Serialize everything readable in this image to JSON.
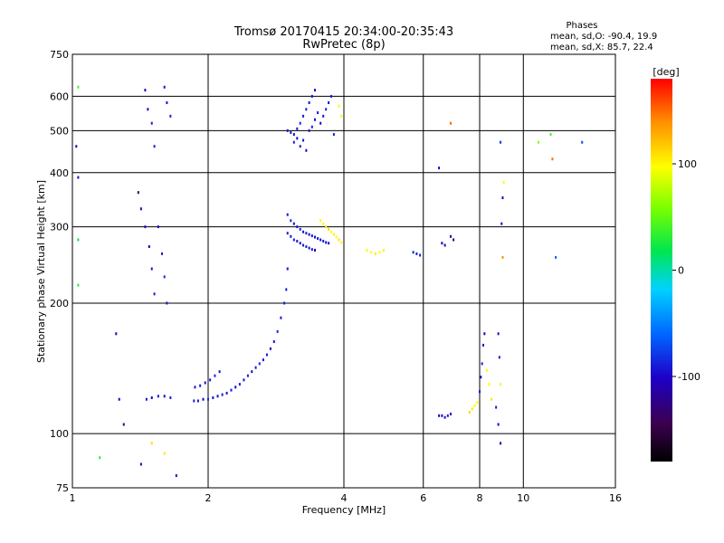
{
  "header": {
    "title_line1": "Tromsø 20170415 20:34:00-20:35:43",
    "title_line2": "RwPretec (8p)"
  },
  "phases_box": {
    "heading": "Phases",
    "line_o": "mean, sd,O: -90.4, 19.9",
    "line_x": "mean, sd,X: 85.7, 22.4"
  },
  "colorbar": {
    "unit_label": "[deg]",
    "range": [
      -180,
      180
    ],
    "ticks": [
      {
        "value": 100,
        "label": "100"
      },
      {
        "value": 0,
        "label": "0"
      },
      {
        "value": -100,
        "label": "-100"
      }
    ]
  },
  "chart_data": {
    "type": "scatter",
    "title": "Tromsø 20170415 20:34:00-20:35:43",
    "subtitle": "RwPretec (8p)",
    "xlabel": "Frequency [MHz]",
    "ylabel": "Stationary phase Virtual Height [km]",
    "x_scale": "log",
    "y_scale": "log",
    "xlim": [
      1,
      16
    ],
    "ylim": [
      75,
      750
    ],
    "x_ticks": [
      {
        "value": 1,
        "label": "1"
      },
      {
        "value": 2,
        "label": "2"
      },
      {
        "value": 4,
        "label": "4"
      },
      {
        "value": 6,
        "label": "6"
      },
      {
        "value": 8,
        "label": "8"
      },
      {
        "value": 10,
        "label": "10"
      },
      {
        "value": 16,
        "label": "16"
      }
    ],
    "y_ticks": [
      {
        "value": 75,
        "label": "75"
      },
      {
        "value": 100,
        "label": "100"
      },
      {
        "value": 200,
        "label": "200"
      },
      {
        "value": 300,
        "label": "300"
      },
      {
        "value": 400,
        "label": "400"
      },
      {
        "value": 500,
        "label": "500"
      },
      {
        "value": 600,
        "label": "600"
      },
      {
        "value": 750,
        "label": "750"
      }
    ],
    "x_gridlines": [
      2,
      4,
      6,
      8,
      10
    ],
    "y_gridlines": [
      100,
      200,
      300,
      400,
      500,
      600
    ],
    "grid": true,
    "color_axis": "phase [deg]",
    "series": [
      {
        "trace": "O-mode lower trace",
        "points": [
          [
            1.46,
            120,
            -95
          ],
          [
            1.5,
            121,
            -100
          ],
          [
            1.55,
            122,
            -92
          ],
          [
            1.6,
            122,
            -98
          ],
          [
            1.65,
            121,
            -88
          ],
          [
            1.86,
            119,
            -90
          ],
          [
            1.9,
            119,
            -95
          ],
          [
            1.95,
            120,
            -100
          ],
          [
            2.0,
            120,
            -85
          ],
          [
            2.05,
            121,
            -92
          ],
          [
            2.1,
            122,
            -96
          ],
          [
            2.15,
            123,
            -88
          ],
          [
            2.2,
            124,
            -94
          ],
          [
            2.25,
            126,
            -90
          ],
          [
            2.3,
            128,
            -98
          ],
          [
            2.35,
            130,
            -86
          ],
          [
            2.4,
            133,
            -92
          ],
          [
            2.45,
            136,
            -88
          ],
          [
            2.5,
            139,
            -95
          ],
          [
            2.55,
            142,
            -90
          ],
          [
            2.6,
            145,
            -84
          ],
          [
            2.65,
            148,
            -92
          ],
          [
            2.7,
            152,
            -88
          ],
          [
            2.75,
            157,
            -96
          ],
          [
            2.8,
            163,
            -90
          ],
          [
            2.85,
            172,
            -86
          ],
          [
            2.9,
            185,
            -92
          ],
          [
            2.95,
            200,
            -88
          ],
          [
            2.98,
            215,
            -90
          ],
          [
            3.0,
            240,
            -94
          ],
          [
            1.87,
            128,
            -92
          ],
          [
            1.92,
            129,
            -88
          ],
          [
            1.97,
            131,
            -96
          ],
          [
            2.02,
            133,
            -90
          ],
          [
            2.07,
            136,
            -85
          ],
          [
            2.12,
            139,
            -92
          ]
        ]
      },
      {
        "trace": "F-region traces 270-330 km",
        "points": [
          [
            3.0,
            290,
            -90
          ],
          [
            3.05,
            285,
            -95
          ],
          [
            3.1,
            280,
            -88
          ],
          [
            3.15,
            278,
            -92
          ],
          [
            3.2,
            275,
            -98
          ],
          [
            3.25,
            272,
            -90
          ],
          [
            3.3,
            270,
            -86
          ],
          [
            3.35,
            268,
            -94
          ],
          [
            3.4,
            266,
            -90
          ],
          [
            3.45,
            265,
            -100
          ],
          [
            3.0,
            320,
            -92
          ],
          [
            3.05,
            310,
            -88
          ],
          [
            3.1,
            305,
            -96
          ],
          [
            3.15,
            300,
            -90
          ],
          [
            3.2,
            296,
            -85
          ],
          [
            3.25,
            292,
            -92
          ],
          [
            3.3,
            290,
            -88
          ],
          [
            3.35,
            288,
            -94
          ],
          [
            3.4,
            286,
            -90
          ],
          [
            3.45,
            284,
            -95
          ],
          [
            3.5,
            282,
            -88
          ],
          [
            3.55,
            280,
            -92
          ],
          [
            3.6,
            278,
            -90
          ],
          [
            3.65,
            276,
            -96
          ],
          [
            3.7,
            275,
            -92
          ],
          [
            3.55,
            310,
            100
          ],
          [
            3.6,
            305,
            95
          ],
          [
            3.65,
            300,
            105
          ],
          [
            3.7,
            296,
            110
          ],
          [
            3.75,
            292,
            98
          ],
          [
            3.8,
            288,
            102
          ],
          [
            3.85,
            284,
            96
          ],
          [
            3.9,
            280,
            108
          ],
          [
            3.95,
            276,
            100
          ],
          [
            4.5,
            265,
            95
          ],
          [
            4.6,
            262,
            100
          ],
          [
            4.7,
            260,
            105
          ],
          [
            4.8,
            262,
            98
          ],
          [
            4.9,
            265,
            102
          ],
          [
            5.7,
            262,
            -85
          ],
          [
            5.8,
            260,
            -90
          ],
          [
            5.9,
            258,
            -88
          ],
          [
            6.6,
            275,
            -110
          ],
          [
            6.7,
            272,
            -105
          ],
          [
            6.9,
            285,
            -120
          ],
          [
            7.0,
            280,
            -115
          ]
        ]
      },
      {
        "trace": "F-region traces 420-650 km",
        "points": [
          [
            3.0,
            500,
            -92
          ],
          [
            3.05,
            495,
            -88
          ],
          [
            3.1,
            490,
            -96
          ],
          [
            3.15,
            505,
            -90
          ],
          [
            3.2,
            520,
            -85
          ],
          [
            3.25,
            540,
            -92
          ],
          [
            3.3,
            560,
            -88
          ],
          [
            3.35,
            580,
            -94
          ],
          [
            3.4,
            600,
            -90
          ],
          [
            3.45,
            620,
            -96
          ],
          [
            3.1,
            470,
            -90
          ],
          [
            3.15,
            480,
            -95
          ],
          [
            3.2,
            460,
            -88
          ],
          [
            3.25,
            475,
            -92
          ],
          [
            3.3,
            450,
            -98
          ],
          [
            3.35,
            500,
            -90
          ],
          [
            3.4,
            510,
            -86
          ],
          [
            3.45,
            530,
            -94
          ],
          [
            3.5,
            550,
            -90
          ],
          [
            3.55,
            520,
            -100
          ],
          [
            3.6,
            540,
            -92
          ],
          [
            3.65,
            560,
            -88
          ],
          [
            3.7,
            580,
            -96
          ],
          [
            3.75,
            600,
            -90
          ],
          [
            3.8,
            490,
            -85
          ],
          [
            3.9,
            570,
            100
          ],
          [
            3.95,
            540,
            95
          ]
        ]
      },
      {
        "trace": "Lower-frequency sparse points",
        "points": [
          [
            1.02,
            460,
            -100
          ],
          [
            1.03,
            390,
            -95
          ],
          [
            1.03,
            280,
            20
          ],
          [
            1.03,
            220,
            30
          ],
          [
            1.03,
            630,
            40
          ],
          [
            1.25,
            170,
            -110
          ],
          [
            1.27,
            120,
            -100
          ],
          [
            1.3,
            105,
            -120
          ],
          [
            1.4,
            360,
            -140
          ],
          [
            1.42,
            330,
            -110
          ],
          [
            1.45,
            300,
            -95
          ],
          [
            1.48,
            270,
            -100
          ],
          [
            1.5,
            240,
            -92
          ],
          [
            1.52,
            210,
            -88
          ],
          [
            1.55,
            300,
            -96
          ],
          [
            1.58,
            260,
            -90
          ],
          [
            1.6,
            230,
            -85
          ],
          [
            1.62,
            200,
            -92
          ],
          [
            1.45,
            620,
            -100
          ],
          [
            1.47,
            560,
            -96
          ],
          [
            1.5,
            520,
            -90
          ],
          [
            1.52,
            460,
            -88
          ],
          [
            1.6,
            630,
            -95
          ],
          [
            1.62,
            580,
            -92
          ],
          [
            1.65,
            540,
            -88
          ],
          [
            1.5,
            95,
            110
          ],
          [
            1.6,
            90,
            105
          ],
          [
            1.15,
            88,
            30
          ],
          [
            1.42,
            85,
            -100
          ],
          [
            1.7,
            80,
            -95
          ]
        ]
      },
      {
        "trace": "High-frequency sparse points",
        "points": [
          [
            6.5,
            110,
            -95
          ],
          [
            6.6,
            110,
            -100
          ],
          [
            6.7,
            109,
            -92
          ],
          [
            6.8,
            110,
            -88
          ],
          [
            6.9,
            111,
            -96
          ],
          [
            7.6,
            112,
            110
          ],
          [
            7.7,
            114,
            105
          ],
          [
            7.8,
            116,
            98
          ],
          [
            7.9,
            118,
            100
          ],
          [
            8.0,
            125,
            -90
          ],
          [
            8.05,
            135,
            -95
          ],
          [
            8.1,
            145,
            -88
          ],
          [
            8.15,
            160,
            -92
          ],
          [
            8.2,
            170,
            -100
          ],
          [
            8.3,
            140,
            100
          ],
          [
            8.4,
            130,
            95
          ],
          [
            8.5,
            120,
            105
          ],
          [
            8.7,
            115,
            -92
          ],
          [
            8.8,
            105,
            -100
          ],
          [
            8.9,
            95,
            -110
          ],
          [
            8.8,
            170,
            -95
          ],
          [
            8.85,
            150,
            -88
          ],
          [
            8.9,
            130,
            100
          ],
          [
            8.95,
            305,
            -96
          ],
          [
            9.0,
            350,
            -110
          ],
          [
            9.05,
            380,
            95
          ],
          [
            8.9,
            470,
            -80
          ],
          [
            9.0,
            255,
            140
          ],
          [
            10.8,
            470,
            60
          ],
          [
            11.5,
            490,
            40
          ],
          [
            11.6,
            430,
            150
          ],
          [
            11.8,
            255,
            -60
          ],
          [
            13.5,
            470,
            -70
          ],
          [
            6.9,
            520,
            150
          ],
          [
            6.5,
            410,
            -100
          ]
        ]
      }
    ]
  }
}
